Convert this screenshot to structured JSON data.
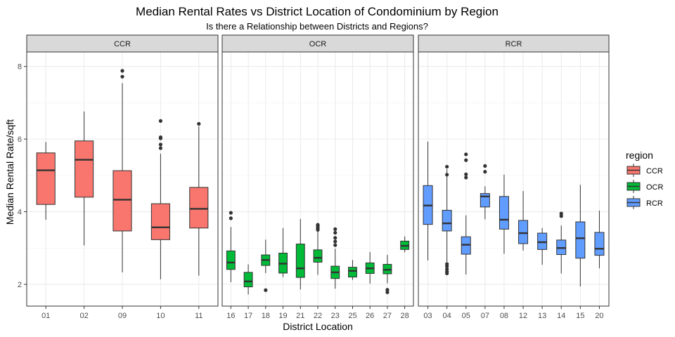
{
  "chart_data": {
    "type": "boxplot",
    "title": "Median Rental Rates vs District Location of Condominium by Region",
    "subtitle": "Is there a Relationship between Districts and Regions?",
    "xlabel": "District Location",
    "ylabel": "Median Rental Rate/sqft",
    "ylim": [
      1.4,
      8.4
    ],
    "yticks": [
      2,
      4,
      6,
      8
    ],
    "legend": {
      "title": "region",
      "placement": "right",
      "entries": [
        {
          "name": "CCR",
          "color": "#F8766D"
        },
        {
          "name": "OCR",
          "color": "#00BA38"
        },
        {
          "name": "RCR",
          "color": "#619CFF"
        }
      ]
    },
    "panels": [
      {
        "label": "CCR",
        "color": "#F8766D",
        "boxes": [
          {
            "district": "01",
            "min": 3.78,
            "q1": 4.2,
            "median": 5.14,
            "q3": 5.62,
            "max": 5.92,
            "outliers": []
          },
          {
            "district": "02",
            "min": 3.07,
            "q1": 4.4,
            "median": 5.43,
            "q3": 5.95,
            "max": 6.76,
            "outliers": []
          },
          {
            "district": "09",
            "min": 2.33,
            "q1": 3.47,
            "median": 4.33,
            "q3": 5.13,
            "max": 7.54,
            "outliers": [
              7.72,
              7.88
            ]
          },
          {
            "district": "10",
            "min": 2.14,
            "q1": 3.23,
            "median": 3.57,
            "q3": 4.22,
            "max": 5.6,
            "outliers": [
              5.75,
              5.85,
              6.02,
              6.05,
              6.5
            ]
          },
          {
            "district": "11",
            "min": 2.24,
            "q1": 3.55,
            "median": 4.08,
            "q3": 4.67,
            "max": 6.35,
            "outliers": [
              6.42
            ]
          }
        ]
      },
      {
        "label": "OCR",
        "color": "#00BA38",
        "boxes": [
          {
            "district": "16",
            "min": 2.06,
            "q1": 2.41,
            "median": 2.6,
            "q3": 2.92,
            "max": 3.58,
            "outliers": [
              3.82,
              3.97
            ]
          },
          {
            "district": "17",
            "min": 1.72,
            "q1": 1.93,
            "median": 2.08,
            "q3": 2.33,
            "max": 2.55,
            "outliers": []
          },
          {
            "district": "18",
            "min": 2.31,
            "q1": 2.52,
            "median": 2.67,
            "q3": 2.81,
            "max": 3.23,
            "outliers": [
              1.84
            ]
          },
          {
            "district": "19",
            "min": 2.2,
            "q1": 2.31,
            "median": 2.57,
            "q3": 2.86,
            "max": 3.55,
            "outliers": []
          },
          {
            "district": "21",
            "min": 1.86,
            "q1": 2.19,
            "median": 2.44,
            "q3": 3.11,
            "max": 3.8,
            "outliers": []
          },
          {
            "district": "22",
            "min": 2.26,
            "q1": 2.61,
            "median": 2.73,
            "q3": 2.95,
            "max": 3.45,
            "outliers": [
              3.5,
              3.55,
              3.6,
              3.64
            ]
          },
          {
            "district": "23",
            "min": 1.88,
            "q1": 2.16,
            "median": 2.33,
            "q3": 2.5,
            "max": 2.98,
            "outliers": [
              3.08,
              3.18,
              3.28,
              3.42,
              3.52
            ]
          },
          {
            "district": "25",
            "min": 2.12,
            "q1": 2.2,
            "median": 2.37,
            "q3": 2.47,
            "max": 2.67,
            "outliers": []
          },
          {
            "district": "26",
            "min": 2.02,
            "q1": 2.3,
            "median": 2.44,
            "q3": 2.59,
            "max": 2.89,
            "outliers": []
          },
          {
            "district": "27",
            "min": 2.03,
            "q1": 2.29,
            "median": 2.4,
            "q3": 2.55,
            "max": 2.81,
            "outliers": [
              1.78,
              1.85
            ]
          },
          {
            "district": "28",
            "min": 2.88,
            "q1": 2.96,
            "median": 3.06,
            "q3": 3.19,
            "max": 3.32,
            "outliers": []
          }
        ]
      },
      {
        "label": "RCR",
        "color": "#619CFF",
        "boxes": [
          {
            "district": "03",
            "min": 2.66,
            "q1": 3.65,
            "median": 4.17,
            "q3": 4.72,
            "max": 5.93,
            "outliers": []
          },
          {
            "district": "04",
            "min": 2.62,
            "q1": 3.47,
            "median": 3.68,
            "q3": 4.04,
            "max": 5.17,
            "outliers": [
              2.3,
              2.35,
              2.42,
              2.5,
              2.56,
              5.02,
              5.24
            ]
          },
          {
            "district": "05",
            "min": 2.27,
            "q1": 2.83,
            "median": 3.09,
            "q3": 3.31,
            "max": 3.9,
            "outliers": [
              4.94,
              5.03,
              5.42,
              5.58
            ]
          },
          {
            "district": "07",
            "min": 3.79,
            "q1": 4.13,
            "median": 4.42,
            "q3": 4.5,
            "max": 4.7,
            "outliers": [
              5.1,
              5.26
            ]
          },
          {
            "district": "08",
            "min": 2.84,
            "q1": 3.52,
            "median": 3.78,
            "q3": 4.42,
            "max": 5.02,
            "outliers": []
          },
          {
            "district": "12",
            "min": 2.93,
            "q1": 3.12,
            "median": 3.41,
            "q3": 3.76,
            "max": 4.57,
            "outliers": []
          },
          {
            "district": "13",
            "min": 2.54,
            "q1": 2.96,
            "median": 3.16,
            "q3": 3.41,
            "max": 3.55,
            "outliers": []
          },
          {
            "district": "14",
            "min": 2.3,
            "q1": 2.82,
            "median": 3.0,
            "q3": 3.22,
            "max": 3.62,
            "outliers": [
              3.88,
              3.95
            ]
          },
          {
            "district": "15",
            "min": 1.94,
            "q1": 2.72,
            "median": 3.27,
            "q3": 3.72,
            "max": 4.74,
            "outliers": []
          },
          {
            "district": "20",
            "min": 2.44,
            "q1": 2.8,
            "median": 2.98,
            "q3": 3.43,
            "max": 4.03,
            "outliers": []
          }
        ]
      }
    ]
  }
}
